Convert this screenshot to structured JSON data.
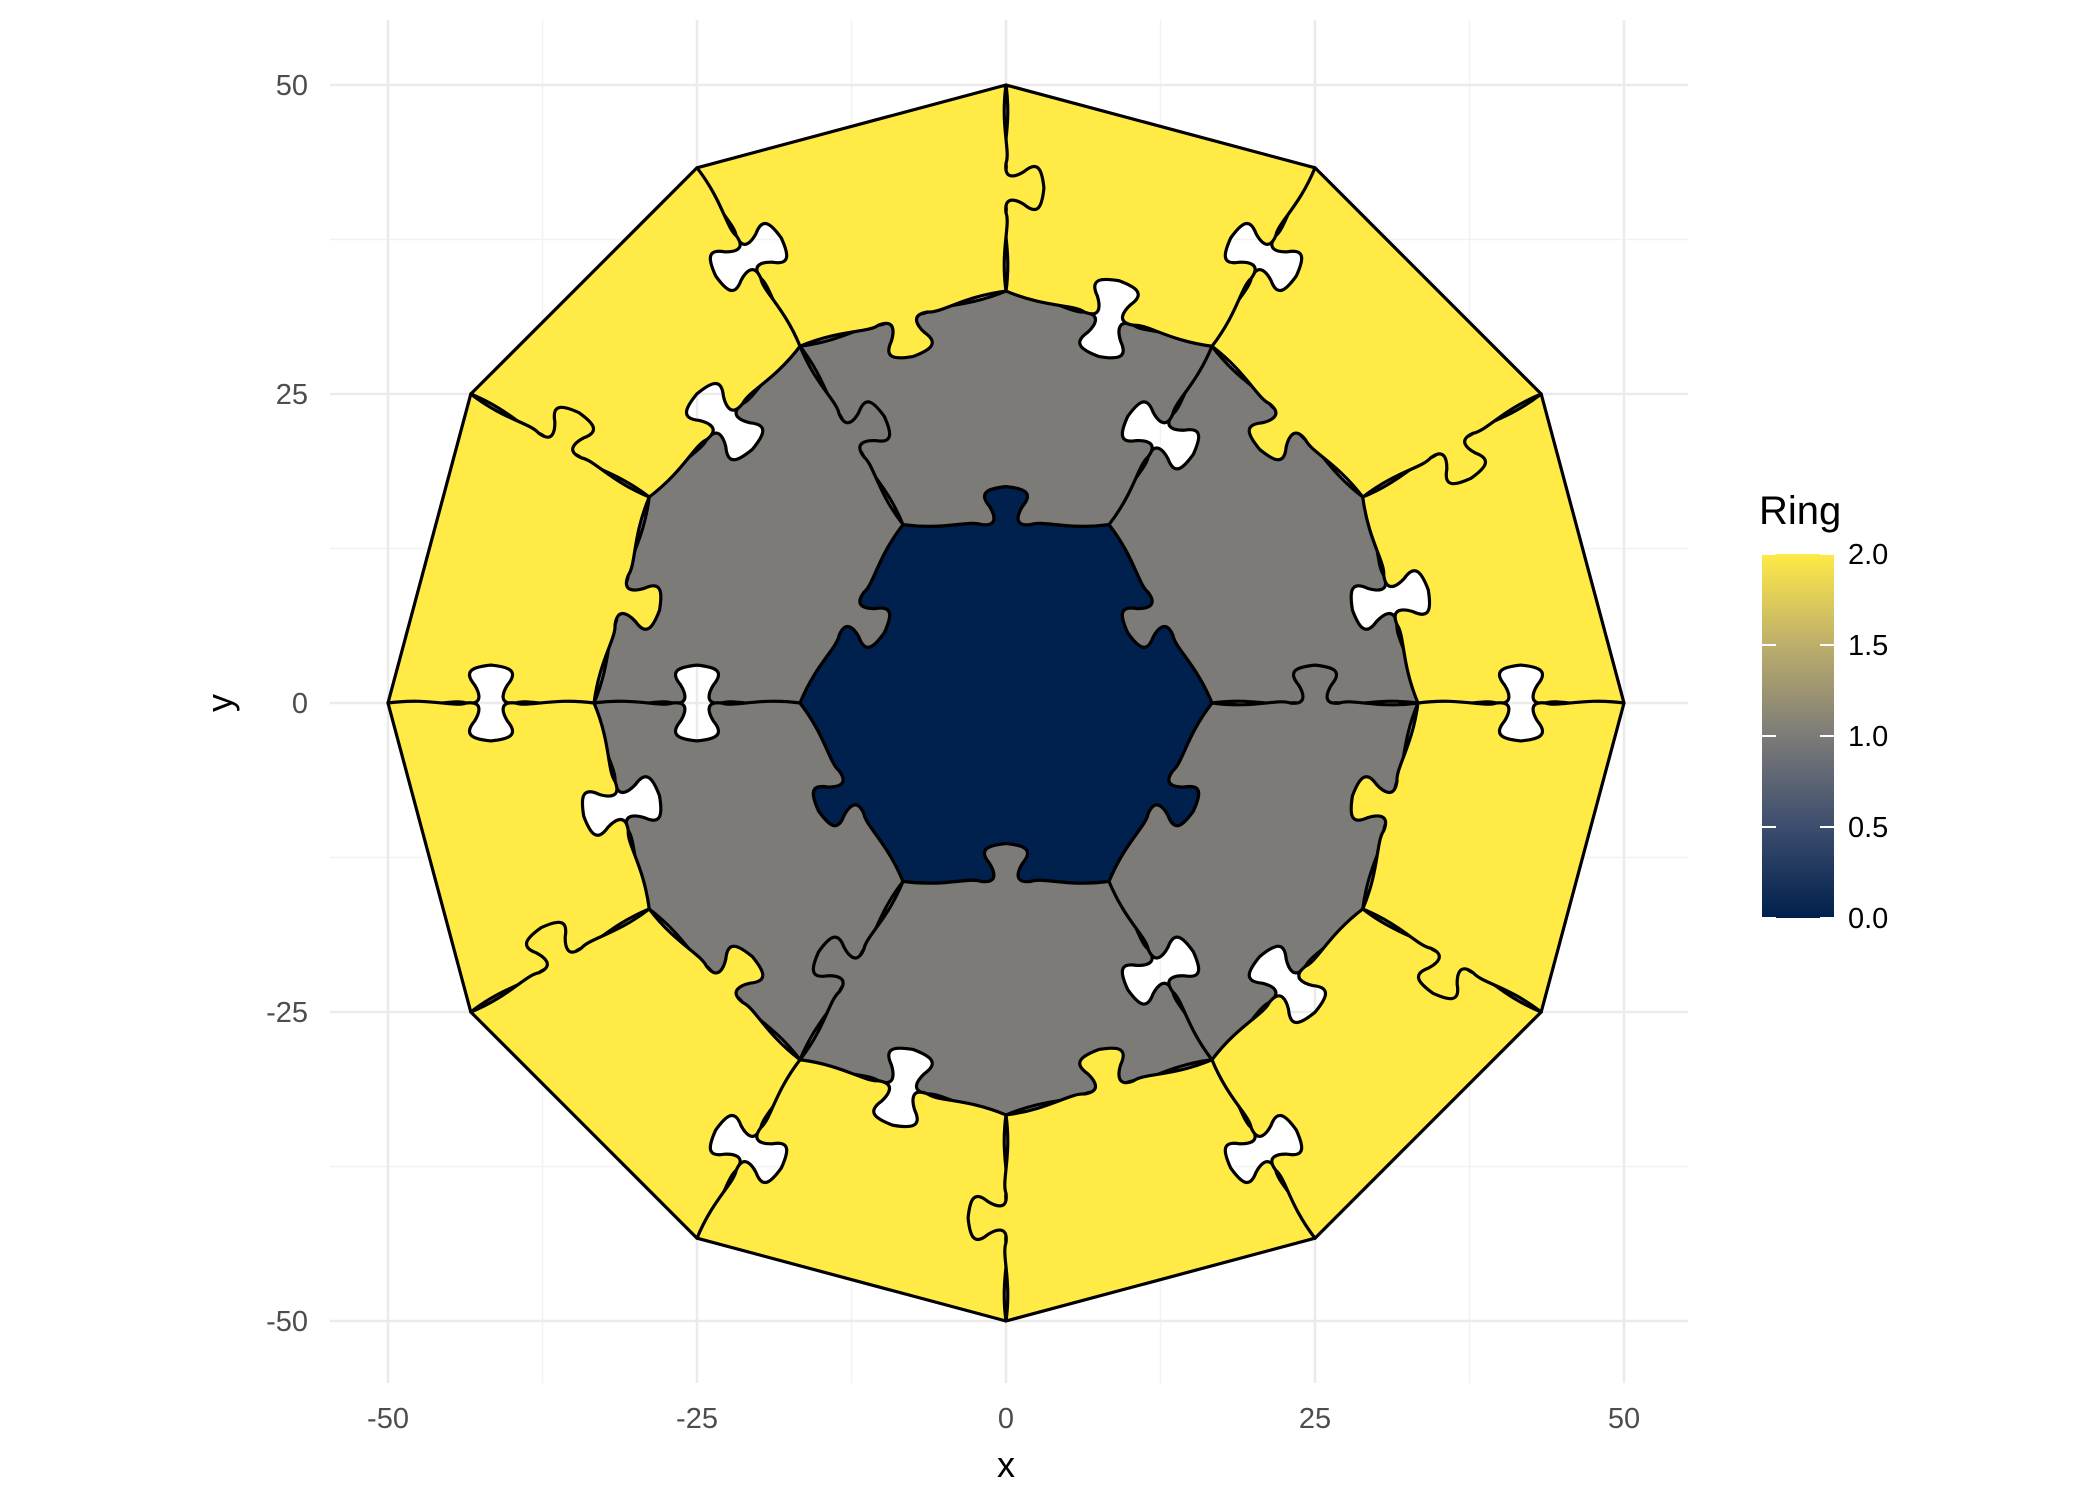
{
  "chart_data": {
    "type": "polygon",
    "description_note": "",
    "xlabel": "x",
    "ylabel": "y",
    "xlim": [
      -55,
      55
    ],
    "ylim": [
      -55,
      55
    ],
    "xticks": [
      -50,
      -25,
      0,
      25,
      50
    ],
    "yticks": [
      -50,
      -25,
      0,
      25,
      50
    ],
    "xtick_labels": [
      "-50",
      "-25",
      "0",
      "25",
      "50"
    ],
    "ytick_labels": [
      "-50",
      "-25",
      "0",
      "25",
      "50"
    ],
    "grid": true,
    "legend": {
      "title": "Ring",
      "placement": "right",
      "range": [
        0,
        2
      ],
      "ticks": [
        0.0,
        0.5,
        1.0,
        1.5,
        2.0
      ],
      "tick_labels": [
        "0.0",
        "0.5",
        "1.0",
        "1.5",
        "2.0"
      ],
      "colors": [
        "#00204d",
        "#7c7b78",
        "#ffea46"
      ]
    },
    "rings": [
      {
        "ring": 0,
        "inner_radius": 0,
        "outer_radius": 16.67,
        "pieces": 1,
        "fill": "#00204d"
      },
      {
        "ring": 1,
        "inner_radius": 16.67,
        "outer_radius": 33.33,
        "pieces": 6,
        "fill": "#7c7b78"
      },
      {
        "ring": 2,
        "inner_radius": 33.33,
        "outer_radius": 50,
        "pieces": 12,
        "fill": "#ffea46"
      }
    ]
  }
}
